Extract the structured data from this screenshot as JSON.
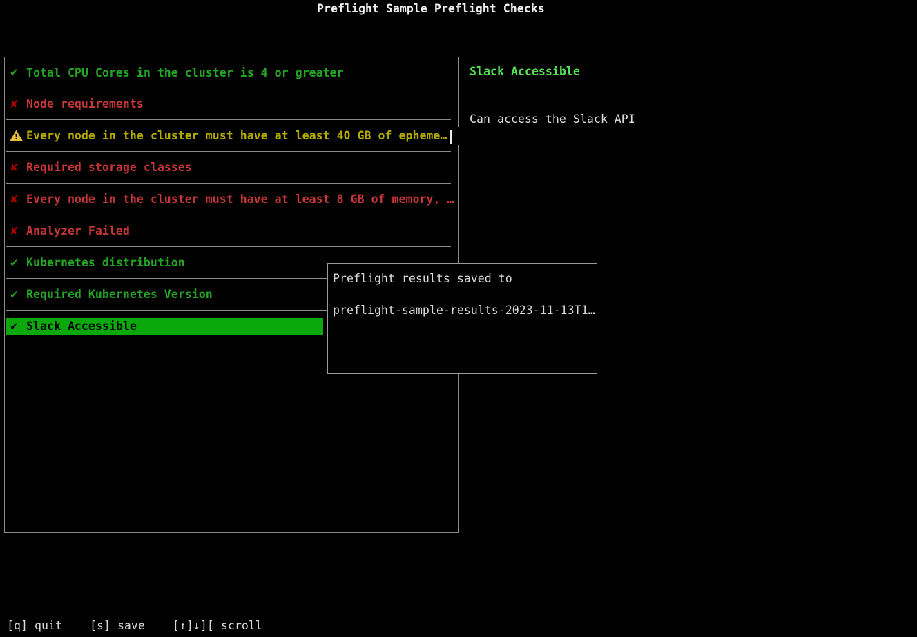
{
  "title": "Preflight Sample Preflight Checks",
  "colors": {
    "pass": "#24a524",
    "fail": "#c73737",
    "fail_icon": "#b00000",
    "warn": "#b4ab00",
    "warn_icon": "#e9bc3c",
    "selected_bg": "#0aa80a",
    "accent_green": "#56e056",
    "border": "#8a8a8a",
    "text": "#e3e3e3"
  },
  "checks": {
    "items": [
      {
        "status": "pass",
        "icon": "check-icon",
        "label": "Total CPU Cores in the cluster is 4 or greater",
        "selected": false
      },
      {
        "status": "fail",
        "icon": "x-icon",
        "label": "Node requirements",
        "selected": false
      },
      {
        "status": "warn",
        "icon": "warning-icon",
        "label": "Every node in the cluster must have at least 40 GB of epheme…",
        "selected": false
      },
      {
        "status": "fail",
        "icon": "x-icon",
        "label": "Required storage classes",
        "selected": false
      },
      {
        "status": "fail",
        "icon": "x-icon",
        "label": "Every node in the cluster must have at least 8 GB of memory, …",
        "selected": false
      },
      {
        "status": "fail",
        "icon": "x-icon",
        "label": "Analyzer Failed",
        "selected": false
      },
      {
        "status": "pass",
        "icon": "check-icon",
        "label": "Kubernetes distribution",
        "selected": false
      },
      {
        "status": "pass",
        "icon": "check-icon",
        "label": "Required Kubernetes Version",
        "selected": false
      },
      {
        "status": "pass",
        "icon": "check-icon",
        "label": "Slack Accessible",
        "selected": true
      }
    ]
  },
  "detail": {
    "title": "Slack Accessible",
    "message": "Can access the Slack API"
  },
  "modal": {
    "line1": "Preflight results saved to",
    "line2": "preflight-sample-results-2023-11-13T1…"
  },
  "footer": {
    "hints": [
      {
        "name": "quit-hint",
        "key": "[q]",
        "label": "quit"
      },
      {
        "name": "save-hint",
        "key": "[s]",
        "label": "save"
      },
      {
        "name": "scroll-hint",
        "key": "[↑]↓][",
        "label": "scroll"
      }
    ]
  },
  "icons": {
    "check": "✔",
    "x": "✘",
    "warning_bang": "!"
  }
}
